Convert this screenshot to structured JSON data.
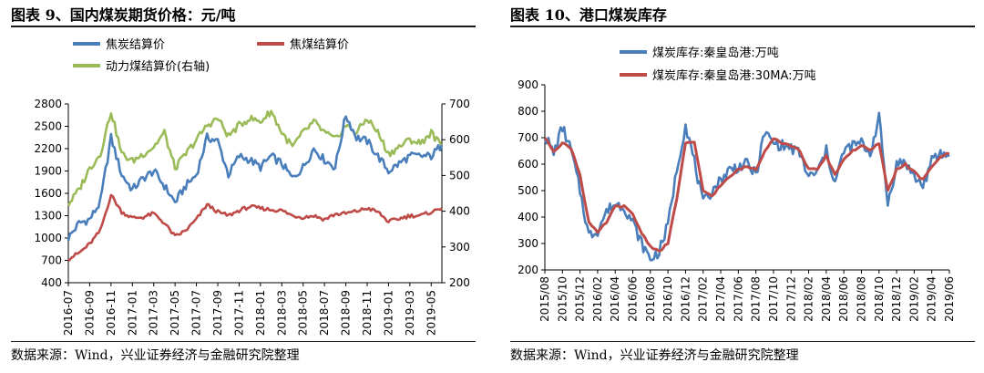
{
  "left_chart": {
    "title": "图表 9、国内煤炭期货价格：元/吨",
    "source": "数据来源：Wind，兴业证券经济与金融研究院整理"
  },
  "right_chart": {
    "title": "图表 10、港口煤炭库存",
    "source": "数据来源：Wind，兴业证券经济与金融研究院整理"
  },
  "chart_data": [
    {
      "type": "line",
      "title": "图表 9、国内煤炭期货价格：元/吨",
      "x": [
        "2016-07",
        "2016-08",
        "2016-09",
        "2016-10",
        "2016-11",
        "2016-12",
        "2017-01",
        "2017-02",
        "2017-03",
        "2017-04",
        "2017-05",
        "2017-06",
        "2017-07",
        "2017-08",
        "2017-09",
        "2017-10",
        "2017-11",
        "2017-12",
        "2018-01",
        "2018-02",
        "2018-03",
        "2018-04",
        "2018-05",
        "2018-06",
        "2018-07",
        "2018-08",
        "2018-09",
        "2018-10",
        "2018-11",
        "2018-12",
        "2019-01",
        "2019-02",
        "2019-03",
        "2019-04",
        "2019-05",
        "2019-06"
      ],
      "x_tick_labels": [
        "2016-07",
        "2016-09",
        "2016-11",
        "2017-01",
        "2017-03",
        "2017-05",
        "2017-07",
        "2017-09",
        "2017-11",
        "2018-01",
        "2018-03",
        "2018-05",
        "2018-07",
        "2018-09",
        "2018-11",
        "2019-01",
        "2019-03",
        "2019-05"
      ],
      "y_left": {
        "min": 400,
        "max": 2800,
        "ticks": [
          400,
          700,
          1000,
          1300,
          1600,
          1900,
          2200,
          2500,
          2800
        ]
      },
      "y_right": {
        "min": 200,
        "max": 700,
        "ticks": [
          200,
          300,
          400,
          500,
          600,
          700
        ]
      },
      "legend_position": "top",
      "grid": false,
      "series": [
        {
          "name": "焦炭结算价",
          "axis": "left",
          "color": "#4a7ebb",
          "values": [
            1000,
            1200,
            1250,
            1480,
            2350,
            1850,
            1650,
            1800,
            1900,
            1700,
            1480,
            1700,
            1850,
            2350,
            2300,
            1850,
            2100,
            2050,
            1950,
            2100,
            2000,
            1800,
            1950,
            2200,
            2050,
            1950,
            2650,
            2350,
            2300,
            2100,
            1900,
            2000,
            2100,
            2100,
            2100,
            2250
          ]
        },
        {
          "name": "焦煤结算价",
          "axis": "left",
          "color": "#be4b48",
          "values": [
            720,
            800,
            920,
            1100,
            1580,
            1350,
            1270,
            1280,
            1330,
            1200,
            1020,
            1100,
            1250,
            1450,
            1350,
            1300,
            1370,
            1420,
            1400,
            1380,
            1370,
            1300,
            1280,
            1300,
            1250,
            1320,
            1330,
            1360,
            1400,
            1350,
            1220,
            1260,
            1300,
            1300,
            1350,
            1400
          ]
        },
        {
          "name": "动力煤结算价(右轴)",
          "axis": "right",
          "color": "#9bbb59",
          "values": [
            420,
            460,
            520,
            560,
            680,
            560,
            540,
            560,
            580,
            620,
            520,
            560,
            600,
            640,
            660,
            610,
            640,
            660,
            650,
            680,
            620,
            580,
            620,
            650,
            620,
            600,
            640,
            620,
            660,
            620,
            560,
            580,
            600,
            590,
            620,
            580
          ]
        }
      ]
    },
    {
      "type": "line",
      "title": "图表 10、港口煤炭库存",
      "x": [
        "2015/08",
        "2015/09",
        "2015/10",
        "2015/11",
        "2015/12",
        "2016/01",
        "2016/02",
        "2016/03",
        "2016/04",
        "2016/05",
        "2016/06",
        "2016/07",
        "2016/08",
        "2016/09",
        "2016/10",
        "2016/11",
        "2016/12",
        "2017/01",
        "2017/02",
        "2017/03",
        "2017/04",
        "2017/05",
        "2017/06",
        "2017/07",
        "2017/08",
        "2017/09",
        "2017/10",
        "2017/11",
        "2017/12",
        "2018/01",
        "2018/02",
        "2018/03",
        "2018/04",
        "2018/05",
        "2018/06",
        "2018/07",
        "2018/08",
        "2018/09",
        "2018/10",
        "2018/11",
        "2018/12",
        "2019/01",
        "2019/02",
        "2019/03",
        "2019/04",
        "2019/05",
        "2019/06"
      ],
      "x_tick_labels": [
        "2015/08",
        "2015/10",
        "2015/12",
        "2016/02",
        "2016/04",
        "2016/06",
        "2016/08",
        "2016/10",
        "2016/12",
        "2017/02",
        "2017/04",
        "2017/06",
        "2017/08",
        "2017/10",
        "2017/12",
        "2018/02",
        "2018/04",
        "2018/06",
        "2018/08",
        "2018/10",
        "2018/12",
        "2019/02",
        "2019/04",
        "2019/06"
      ],
      "y": {
        "min": 200,
        "max": 900,
        "ticks": [
          200,
          300,
          400,
          500,
          600,
          700,
          800,
          900
        ]
      },
      "legend_position": "top",
      "grid": false,
      "series": [
        {
          "name": "煤炭库存:秦皇岛港:万吨",
          "color": "#4a7ebb",
          "values": [
            710,
            640,
            740,
            650,
            500,
            330,
            350,
            420,
            450,
            440,
            380,
            300,
            240,
            270,
            370,
            580,
            750,
            610,
            450,
            500,
            540,
            580,
            590,
            600,
            560,
            720,
            680,
            670,
            660,
            640,
            550,
            570,
            650,
            530,
            650,
            670,
            680,
            640,
            780,
            450,
            600,
            610,
            550,
            520,
            610,
            640,
            630
          ]
        },
        {
          "name": "煤炭库存:秦皇岛港:30MA:万吨",
          "color": "#be4b48",
          "values": [
            700,
            650,
            680,
            660,
            560,
            380,
            340,
            380,
            440,
            440,
            410,
            340,
            290,
            270,
            300,
            470,
            680,
            680,
            500,
            480,
            520,
            550,
            580,
            590,
            580,
            650,
            700,
            680,
            670,
            650,
            580,
            580,
            630,
            560,
            620,
            650,
            670,
            650,
            680,
            500,
            580,
            600,
            570,
            540,
            590,
            630,
            640
          ]
        }
      ]
    }
  ]
}
